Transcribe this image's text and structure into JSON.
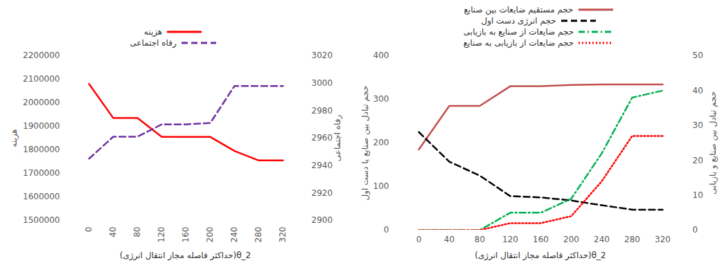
{
  "chart_data": [
    {
      "type": "line",
      "categories": [
        "0",
        "40",
        "80",
        "120",
        "160",
        "200",
        "240",
        "280",
        "320"
      ],
      "x_label": "θ_2(حداکثر فاصله مجاز انتقال انرژی)",
      "y_label": "هزینه",
      "y2_label": "رفاه اجتماعی",
      "ylim": [
        1500000,
        2200000
      ],
      "yticks": [
        1500000,
        1600000,
        1700000,
        1800000,
        1900000,
        2000000,
        2100000,
        2200000
      ],
      "y2lim": [
        2900,
        3020
      ],
      "y2ticks": [
        2900,
        2920,
        2940,
        2960,
        2980,
        3000,
        3020
      ],
      "grid": false,
      "legend": "top",
      "series": [
        {
          "name": "هزینه",
          "color": "#ff0000",
          "line_style": "solid",
          "values": [
            2080000,
            1935000,
            1935000,
            1855000,
            1855000,
            1855000,
            1795000,
            1755000,
            1755000
          ]
        },
        {
          "name": "رفاه اجتماعی",
          "color": "#7030a0",
          "line_style": "dashed",
          "axis": "y2",
          "values": [
            2945,
            2961,
            2961,
            2970,
            2970,
            2971,
            2998,
            2998,
            2998
          ]
        }
      ]
    },
    {
      "type": "line",
      "categories": [
        "0",
        "40",
        "80",
        "120",
        "160",
        "200",
        "240",
        "280",
        "320"
      ],
      "x_label": "θ_2(حداکثر فاصله مجاز انتقال انرژی)",
      "y_label": "حجم تبادل بین صنایع یا دست اول",
      "y2_label": "حجم تبادل بین صنایع و بازیابی",
      "ylim": [
        0,
        400
      ],
      "yticks": [
        0,
        100,
        200,
        300,
        400
      ],
      "y2lim": [
        0,
        50
      ],
      "y2ticks": [
        0,
        10,
        20,
        30,
        40,
        50
      ],
      "grid": false,
      "legend": "top",
      "series": [
        {
          "name": "حجم مستقیم ضایعات بین صنایع",
          "color": "#c0504d",
          "line_style": "solid",
          "values": [
            185,
            285,
            285,
            330,
            330,
            333,
            334,
            334,
            334
          ]
        },
        {
          "name": "حجم انرژی دست اول",
          "color": "#000000",
          "line_style": "dashed",
          "values": [
            225,
            157,
            125,
            78,
            75,
            68,
            57,
            47,
            47
          ]
        },
        {
          "name": "حجم ضایعات از صنایع به بازیابی",
          "color": "#00b050",
          "line_style": "dashdot",
          "axis": "y2",
          "values": [
            0,
            0,
            0,
            5,
            5,
            9,
            22,
            38,
            40
          ]
        },
        {
          "name": "حجم ضایعات از بازیابی به صنایع",
          "color": "#ff0000",
          "line_style": "dotted",
          "axis": "y2",
          "values": [
            0,
            0,
            0,
            2,
            2,
            4,
            14,
            27,
            27
          ]
        }
      ]
    }
  ]
}
